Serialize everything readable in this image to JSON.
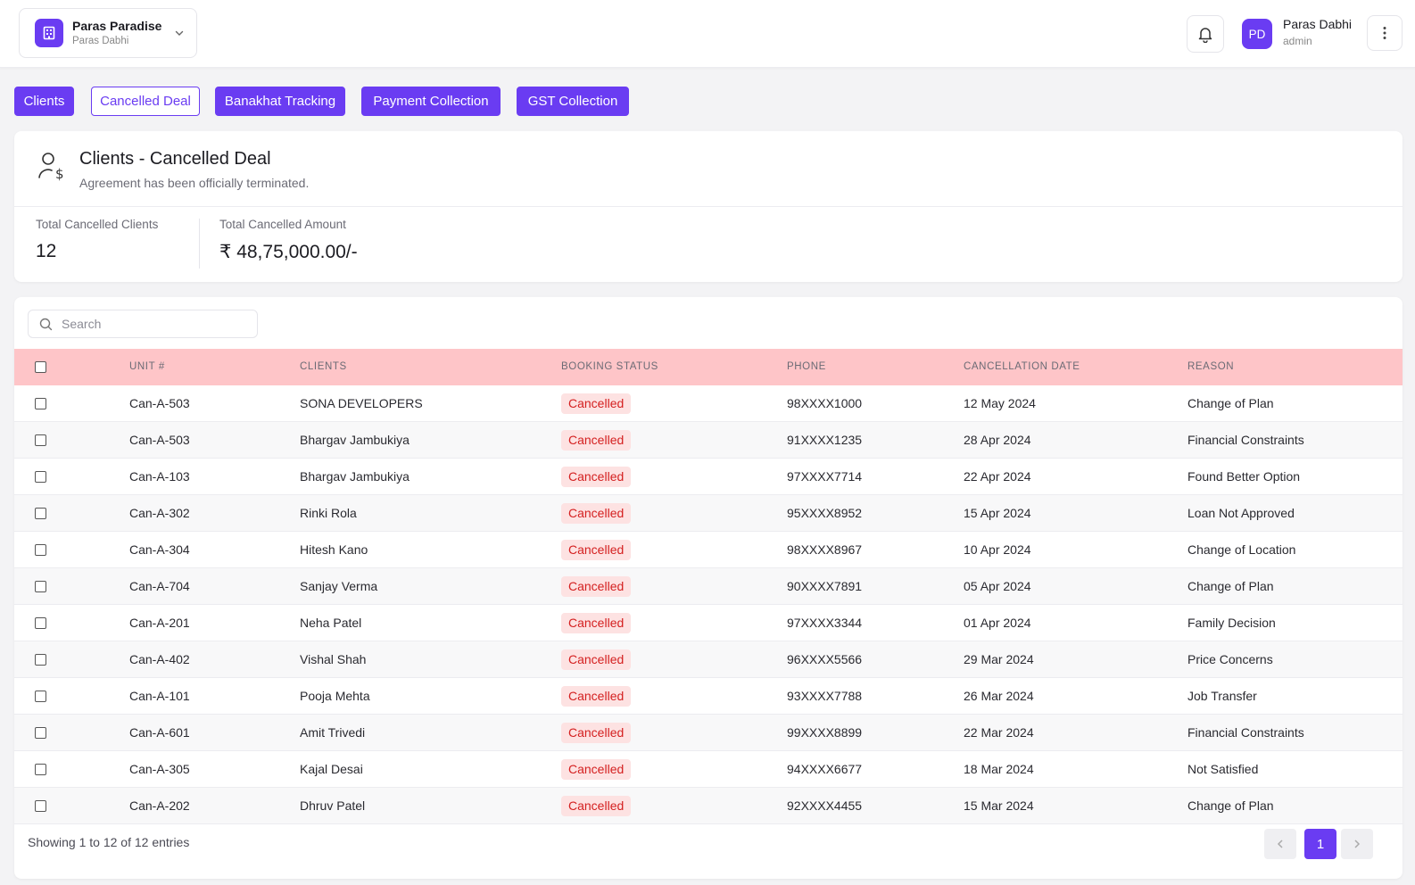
{
  "project": {
    "name": "Paras Paradise",
    "owner": "Paras Dabhi"
  },
  "user": {
    "initials": "PD",
    "name": "Paras Dabhi",
    "role": "admin"
  },
  "tabs": [
    "Clients",
    "Cancelled Deal",
    "Banakhat Tracking",
    "Payment Collection",
    "GST Collection"
  ],
  "active_tab": "Cancelled Deal",
  "summary": {
    "title": "Clients - Cancelled Deal",
    "subtitle": "Agreement has been officially terminated.",
    "total_clients_label": "Total Cancelled Clients",
    "total_clients_value": "12",
    "total_amount_label": "Total Cancelled Amount",
    "total_amount_value": "₹ 48,75,000.00/-"
  },
  "search": {
    "placeholder": "Search"
  },
  "table": {
    "columns": [
      "UNIT #",
      "CLIENTS",
      "BOOKING STATUS",
      "PHONE",
      "CANCELLATION DATE",
      "REASON"
    ],
    "rows": [
      [
        "Can-A-503",
        "SONA DEVELOPERS",
        "Cancelled",
        "98XXXX1000",
        "12 May 2024",
        "Change of Plan"
      ],
      [
        "Can-A-503",
        "Bhargav Jambukiya",
        "Cancelled",
        "91XXXX1235",
        "28 Apr 2024",
        "Financial Constraints"
      ],
      [
        "Can-A-103",
        "Bhargav Jambukiya",
        "Cancelled",
        "97XXXX7714",
        "22 Apr 2024",
        "Found Better Option"
      ],
      [
        "Can-A-302",
        "Rinki Rola",
        "Cancelled",
        "95XXXX8952",
        "15 Apr 2024",
        "Loan Not Approved"
      ],
      [
        "Can-A-304",
        "Hitesh Kano",
        "Cancelled",
        "98XXXX8967",
        "10 Apr 2024",
        "Change of Location"
      ],
      [
        "Can-A-704",
        "Sanjay Verma",
        "Cancelled",
        "90XXXX7891",
        "05 Apr 2024",
        "Change of Plan"
      ],
      [
        "Can-A-201",
        "Neha Patel",
        "Cancelled",
        "97XXXX3344",
        "01 Apr 2024",
        "Family Decision"
      ],
      [
        "Can-A-402",
        "Vishal Shah",
        "Cancelled",
        "96XXXX5566",
        "29 Mar 2024",
        "Price Concerns"
      ],
      [
        "Can-A-101",
        "Pooja Mehta",
        "Cancelled",
        "93XXXX7788",
        "26 Mar 2024",
        "Job Transfer"
      ],
      [
        "Can-A-601",
        "Amit Trivedi",
        "Cancelled",
        "99XXXX8899",
        "22 Mar 2024",
        "Financial Constraints"
      ],
      [
        "Can-A-305",
        "Kajal Desai",
        "Cancelled",
        "94XXXX6677",
        "18 Mar 2024",
        "Not Satisfied"
      ],
      [
        "Can-A-202",
        "Dhruv Patel",
        "Cancelled",
        "92XXXX4455",
        "15 Mar 2024",
        "Change of Plan"
      ]
    ]
  },
  "pagination": {
    "info": "Showing 1 to 12 of 12 entries",
    "current_page": "1",
    "prev_icon": "chevron-left-icon",
    "next_icon": "chevron-right-icon"
  },
  "colors": {
    "accent": "#6a3cf2",
    "header_row": "#fec5c8",
    "badge_bg": "#fde2e2",
    "badge_text": "#d41f1f"
  }
}
